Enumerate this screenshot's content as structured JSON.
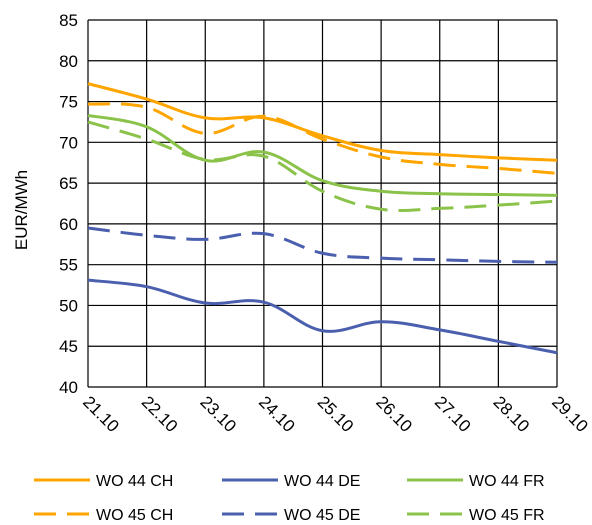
{
  "chart_data": {
    "type": "line",
    "title": "",
    "xlabel": "",
    "ylabel": "EUR/MWh",
    "ylim": [
      40,
      85
    ],
    "yticks": [
      40,
      45,
      50,
      55,
      60,
      65,
      70,
      75,
      80,
      85
    ],
    "categories": [
      "21.10",
      "22.10",
      "23.10",
      "24.10",
      "25.10",
      "26.10",
      "27.10",
      "28.10",
      "29.10"
    ],
    "grid": true,
    "legend_position": "bottom",
    "series": [
      {
        "name": "WO 44 CH",
        "color": "#FFA500",
        "dash": "solid",
        "values": [
          77.2,
          75.3,
          73.0,
          73.0,
          70.8,
          69.0,
          68.5,
          68.1,
          67.8
        ]
      },
      {
        "name": "WO 44 DE",
        "color": "#4A5FAE",
        "dash": "solid",
        "values": [
          53.1,
          52.3,
          50.3,
          50.4,
          46.9,
          48.0,
          47.0,
          45.6,
          44.2
        ]
      },
      {
        "name": "WO 44 FR",
        "color": "#8BC34A",
        "dash": "solid",
        "values": [
          73.3,
          71.9,
          67.8,
          68.8,
          65.3,
          64.0,
          63.7,
          63.6,
          63.5
        ]
      },
      {
        "name": "WO 45 CH",
        "color": "#FFA500",
        "dash": "dashed",
        "values": [
          74.7,
          74.3,
          71.1,
          73.2,
          70.4,
          68.2,
          67.3,
          66.8,
          66.2
        ]
      },
      {
        "name": "WO 45 DE",
        "color": "#4A5FAE",
        "dash": "dashed",
        "values": [
          59.5,
          58.6,
          58.1,
          58.8,
          56.4,
          55.8,
          55.6,
          55.4,
          55.3
        ]
      },
      {
        "name": "WO 45 FR",
        "color": "#8BC34A",
        "dash": "dashed",
        "values": [
          72.5,
          70.4,
          67.9,
          68.3,
          64.0,
          61.8,
          61.9,
          62.3,
          62.8
        ]
      }
    ]
  }
}
